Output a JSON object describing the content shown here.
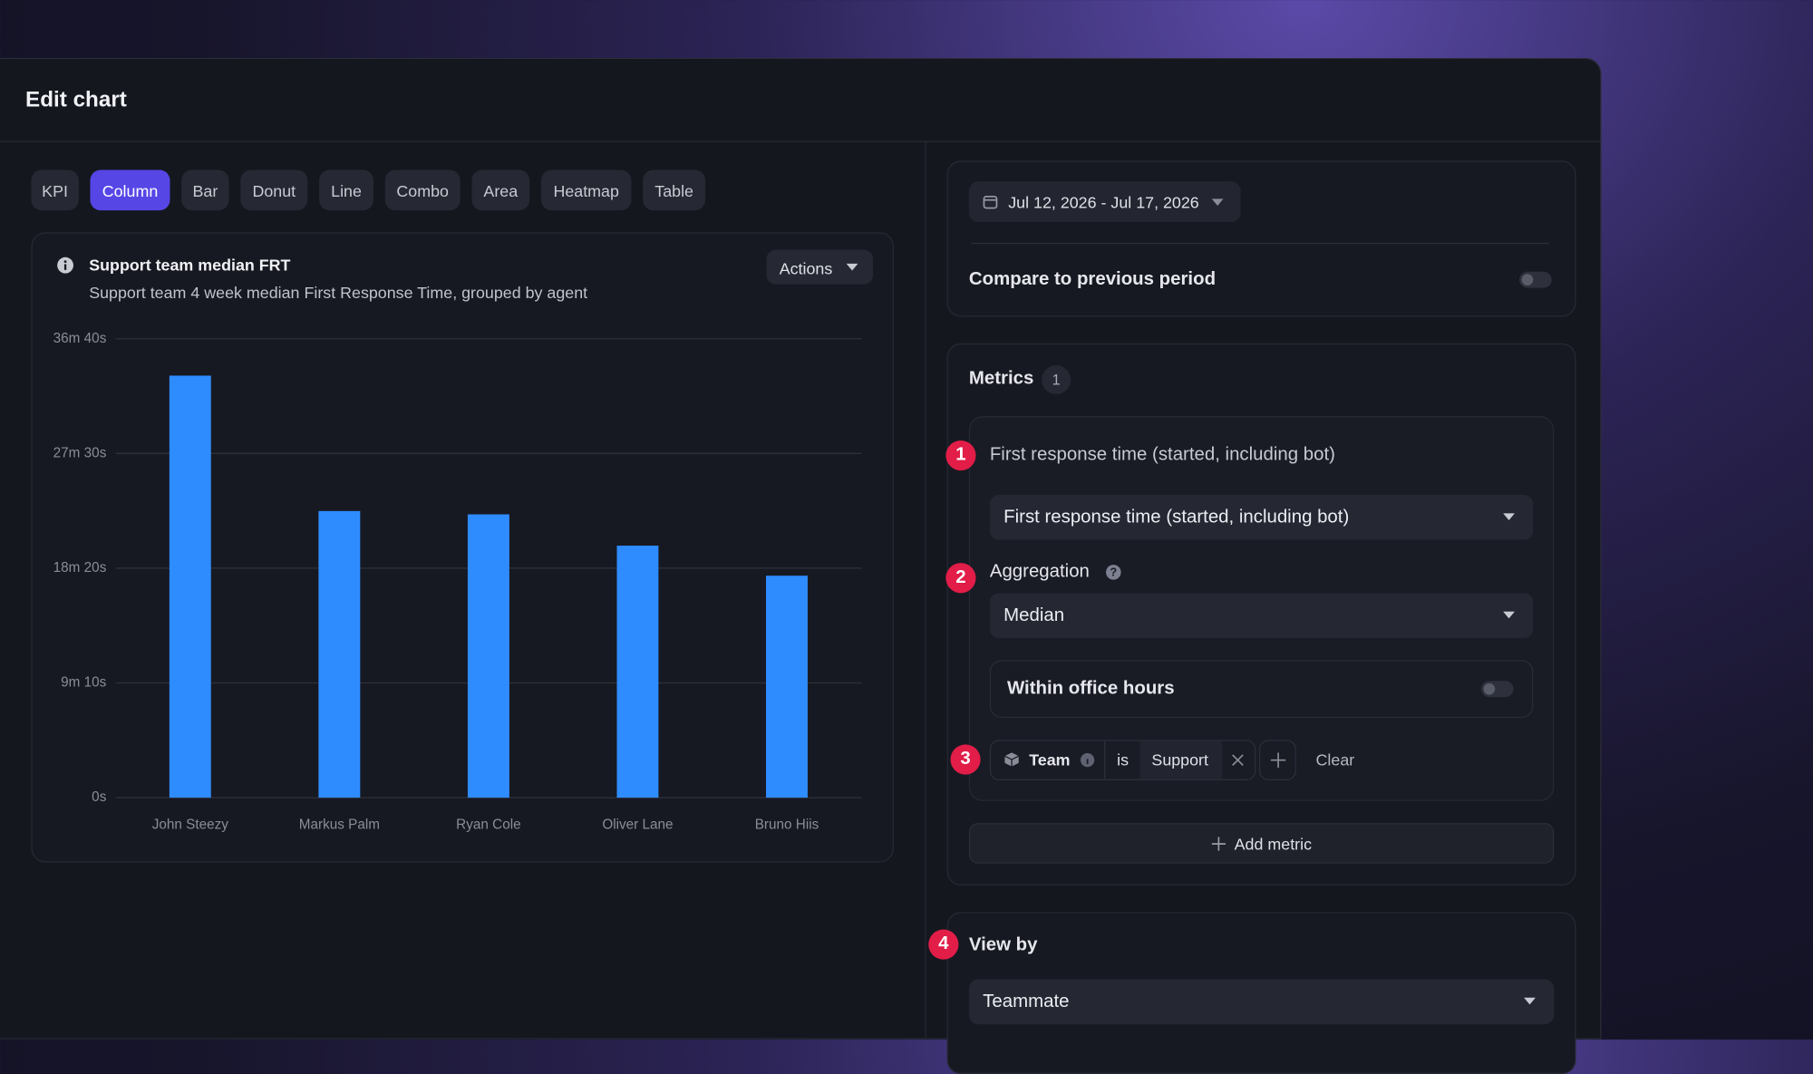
{
  "header": {
    "title": "Edit chart"
  },
  "chart_types": [
    {
      "label": "KPI"
    },
    {
      "label": "Column",
      "selected": true
    },
    {
      "label": "Bar"
    },
    {
      "label": "Donut"
    },
    {
      "label": "Line"
    },
    {
      "label": "Combo"
    },
    {
      "label": "Area"
    },
    {
      "label": "Heatmap"
    },
    {
      "label": "Table"
    }
  ],
  "chart_data": {
    "type": "bar",
    "title": "Support team median FRT",
    "subtitle": "Support team 4 week median First Response Time, grouped by agent",
    "categories": [
      "John Steezy",
      "Markus Palm",
      "Ryan Cole",
      "Oliver Lane",
      "Bruno Hiis"
    ],
    "values": [
      2023,
      1374,
      1358,
      1208,
      1064
    ],
    "color": "#2f8cff",
    "ylim": [
      0,
      2200
    ],
    "yticks": [
      {
        "value": 0,
        "label": "0s"
      },
      {
        "value": 550,
        "label": "9m 10s"
      },
      {
        "value": 1100,
        "label": "18m 20s"
      },
      {
        "value": 1650,
        "label": "27m 30s"
      },
      {
        "value": 2200,
        "label": "36m 40s"
      }
    ],
    "grid": true
  },
  "actions": "Actions",
  "date_range": "Jul 12, 2026 - Jul 17, 2026",
  "compare": {
    "label": "Compare to previous period",
    "enabled": false
  },
  "step_markers": [
    1,
    2,
    3,
    4
  ],
  "metrics": {
    "title": "Metrics",
    "count": 1,
    "name": "First response time (started, including bot)",
    "field": "First response time (started, including bot)",
    "aggregation_label": "Aggregation",
    "aggregation": "Median",
    "office_hours": {
      "label": "Within office hours",
      "enabled": false
    },
    "filter": {
      "field": "Team",
      "operator": "is",
      "value": "Support",
      "clear": "Clear"
    },
    "add": "Add metric"
  },
  "view_by": {
    "title": "View by",
    "value": "Teammate"
  }
}
